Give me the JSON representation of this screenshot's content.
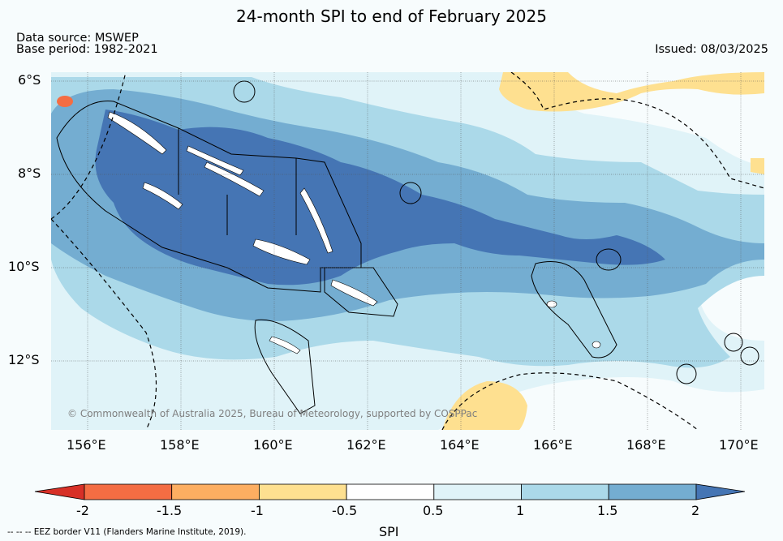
{
  "title": "24-month SPI to end of February 2025",
  "data_source": "Data source: MSWEP",
  "base_period": "Base period: 1982-2021",
  "issued": "Issued: 08/03/2025",
  "copyright": "© Commonwealth of Australia 2025, Bureau of Meteorology, supported by COSPPac",
  "latitude_labels": [
    "6°S",
    "8°S",
    "10°S",
    "12°S"
  ],
  "longitude_labels": [
    "156°E",
    "158°E",
    "160°E",
    "162°E",
    "164°E",
    "166°E",
    "168°E",
    "170°E"
  ],
  "colorbar": {
    "label": "SPI",
    "ticks": [
      "-2",
      "-1.5",
      "-1",
      "-0.5",
      "0.5",
      "1",
      "1.5",
      "2"
    ],
    "colors": [
      "#d73027",
      "#f46d43",
      "#fdae61",
      "#fee090",
      "#ffffff",
      "#e0f3f8",
      "#abd9e9",
      "#74add1",
      "#4575b4"
    ]
  },
  "eez_note": "--  --  -- EEZ border V11 (Flanders Marine Institute, 2019)."
}
